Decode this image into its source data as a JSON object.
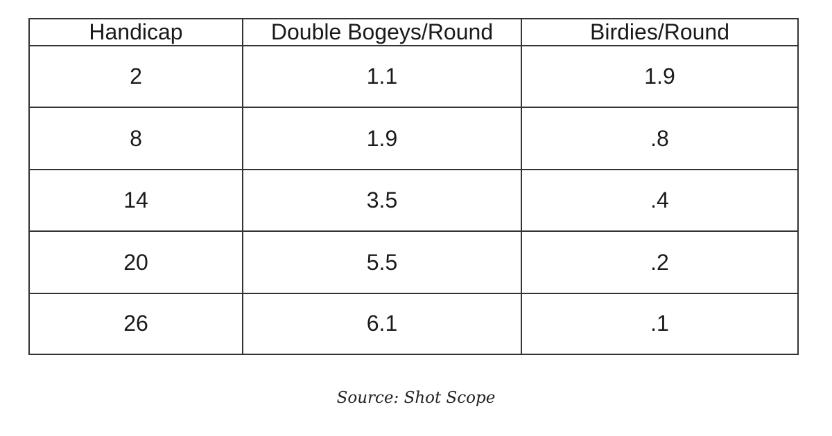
{
  "table": {
    "headers": [
      "Handicap",
      "Double Bogeys/Round",
      "Birdies/Round"
    ],
    "rows": [
      [
        "2",
        "1.1",
        "1.9"
      ],
      [
        "8",
        "1.9",
        ".8"
      ],
      [
        "14",
        "3.5",
        ".4"
      ],
      [
        "20",
        "5.5",
        ".2"
      ],
      [
        "26",
        "6.1",
        ".1"
      ]
    ]
  },
  "caption": "Source: Shot Scope",
  "colors": {
    "border": "#333333",
    "text": "#1a1a1a",
    "background": "#ffffff"
  }
}
